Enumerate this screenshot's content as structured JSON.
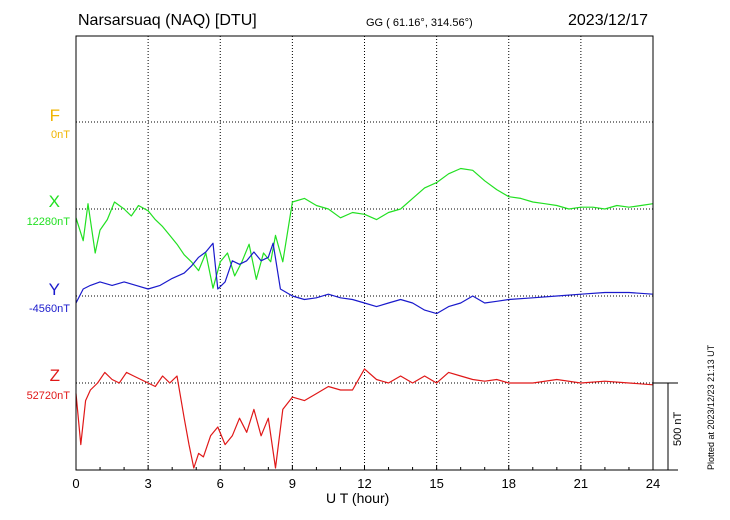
{
  "header": {
    "station": "Narsarsuaq (NAQ)  [DTU]",
    "coords": "GG ( 61.16°, 314.56°)",
    "date": "2023/12/17"
  },
  "footer_note": "Plotted at 2023/12/23 21:13 UT",
  "chart_data": {
    "type": "line",
    "xlabel": "U T (hour)",
    "xlim": [
      0,
      24
    ],
    "xticks": [
      "0",
      "3",
      "6",
      "9",
      "12",
      "15",
      "18",
      "21",
      "24"
    ],
    "scale_bar": {
      "label": "500 nT",
      "value": 500
    },
    "colors": {
      "F": "#f0b400",
      "X": "#22e022",
      "Y": "#1a1acc",
      "Z": "#e01818"
    },
    "series": [
      {
        "name": "F",
        "baseline": "0nT",
        "x": [],
        "y": []
      },
      {
        "name": "X",
        "baseline": "12280nT",
        "x": [
          0,
          0.3,
          0.5,
          0.8,
          1.0,
          1.3,
          1.6,
          2.0,
          2.3,
          2.6,
          3.0,
          3.3,
          3.6,
          3.9,
          4.2,
          4.5,
          4.8,
          5.1,
          5.4,
          5.7,
          6.0,
          6.3,
          6.6,
          6.9,
          7.2,
          7.5,
          7.8,
          8.1,
          8.3,
          8.6,
          9.0,
          9.5,
          10.0,
          10.5,
          11.0,
          11.5,
          12.0,
          12.5,
          13.0,
          13.5,
          14.0,
          14.5,
          15.0,
          15.5,
          16.0,
          16.5,
          17.0,
          17.5,
          18.0,
          18.5,
          19.0,
          19.5,
          20.0,
          20.5,
          21.0,
          21.5,
          22.0,
          22.5,
          23.0,
          23.5,
          24.0
        ],
        "y": [
          -50,
          -180,
          30,
          -250,
          -120,
          -60,
          40,
          0,
          -40,
          20,
          -10,
          -60,
          -100,
          -150,
          -200,
          -260,
          -300,
          -350,
          -250,
          -450,
          -300,
          -250,
          -380,
          -300,
          -200,
          -400,
          -250,
          -300,
          -150,
          -300,
          40,
          60,
          20,
          0,
          -50,
          -20,
          -30,
          -60,
          -20,
          0,
          60,
          120,
          150,
          200,
          230,
          220,
          160,
          110,
          70,
          60,
          40,
          30,
          20,
          0,
          10,
          10,
          0,
          20,
          10,
          20,
          30
        ]
      },
      {
        "name": "Y",
        "baseline": "-4560nT",
        "x": [
          0,
          0.3,
          0.6,
          1.0,
          1.5,
          2.0,
          2.5,
          3.0,
          3.5,
          4.0,
          4.5,
          4.8,
          5.1,
          5.4,
          5.7,
          5.9,
          6.2,
          6.5,
          6.8,
          7.1,
          7.4,
          7.7,
          8.0,
          8.2,
          8.5,
          9.0,
          9.5,
          10.0,
          10.5,
          11.0,
          11.5,
          12.0,
          12.5,
          13.0,
          13.5,
          14.0,
          14.5,
          15.0,
          15.5,
          16.0,
          16.5,
          17.0,
          17.5,
          18.0,
          19.0,
          20.0,
          21.0,
          22.0,
          23.0,
          24.0
        ],
        "y": [
          -40,
          40,
          60,
          80,
          60,
          80,
          60,
          40,
          60,
          100,
          130,
          170,
          220,
          250,
          300,
          40,
          80,
          200,
          180,
          200,
          250,
          200,
          220,
          300,
          40,
          0,
          -20,
          -10,
          10,
          -10,
          -20,
          -40,
          -60,
          -40,
          -20,
          -40,
          -80,
          -100,
          -60,
          -40,
          0,
          -40,
          -30,
          -20,
          -10,
          0,
          10,
          20,
          20,
          10
        ]
      },
      {
        "name": "Z",
        "baseline": "52720nT",
        "x": [
          0,
          0.2,
          0.4,
          0.6,
          0.9,
          1.2,
          1.5,
          1.8,
          2.1,
          2.4,
          2.7,
          3.0,
          3.3,
          3.6,
          3.9,
          4.2,
          4.5,
          4.7,
          4.9,
          5.1,
          5.3,
          5.6,
          5.9,
          6.2,
          6.5,
          6.8,
          7.1,
          7.4,
          7.7,
          8.0,
          8.3,
          8.6,
          9.0,
          9.5,
          10.0,
          10.5,
          11.0,
          11.5,
          12.0,
          12.5,
          13.0,
          13.5,
          14.0,
          14.5,
          15.0,
          15.5,
          16.0,
          16.5,
          17.0,
          17.5,
          18.0,
          19.0,
          20.0,
          21.0,
          22.0,
          23.0,
          24.0
        ],
        "y": [
          -60,
          -350,
          -100,
          -40,
          0,
          60,
          20,
          0,
          60,
          40,
          20,
          0,
          -20,
          40,
          0,
          40,
          -200,
          -350,
          -500,
          -400,
          -420,
          -300,
          -250,
          -350,
          -300,
          -200,
          -280,
          -150,
          -300,
          -200,
          -500,
          -150,
          -80,
          -100,
          -60,
          -20,
          -40,
          -40,
          80,
          20,
          0,
          40,
          0,
          40,
          0,
          60,
          40,
          20,
          10,
          20,
          0,
          0,
          20,
          0,
          10,
          0,
          -10
        ]
      }
    ]
  }
}
